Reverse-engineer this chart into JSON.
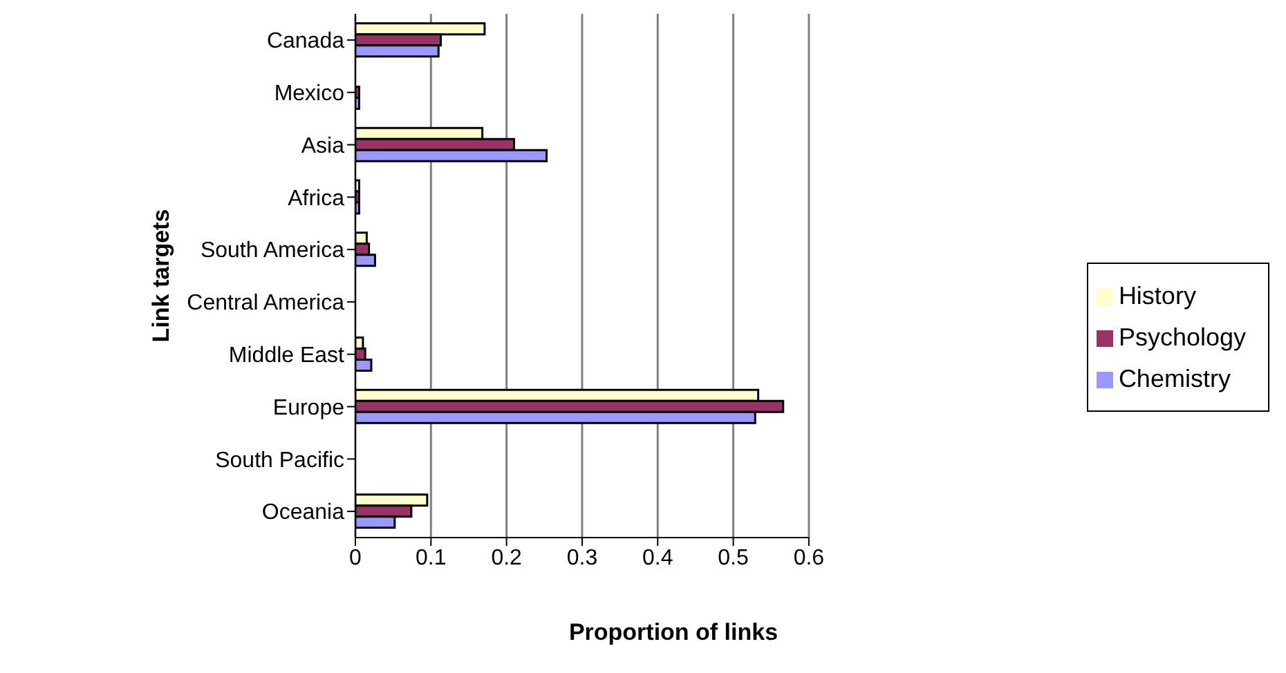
{
  "chart_data": {
    "type": "bar",
    "orientation": "horizontal",
    "xlabel": "Proportion of links",
    "ylabel": "Link targets",
    "categories": [
      "Canada",
      "Mexico",
      "Asia",
      "Africa",
      "South America",
      "Central America",
      "Middle East",
      "Europe",
      "South Pacific",
      "Oceania"
    ],
    "series": [
      {
        "name": "History",
        "color": "#ffffcc",
        "values": [
          0.171,
          0,
          0.168,
          0.005,
          0.015,
          0,
          0.01,
          0.533,
          0,
          0.095
        ]
      },
      {
        "name": "Psychology",
        "color": "#993366",
        "values": [
          0.113,
          0.005,
          0.21,
          0.005,
          0.018,
          0,
          0.013,
          0.566,
          0,
          0.074
        ]
      },
      {
        "name": "Chemistry",
        "color": "#9999ff",
        "values": [
          0.11,
          0.005,
          0.253,
          0.005,
          0.026,
          0,
          0.021,
          0.529,
          0,
          0.052
        ]
      }
    ],
    "xlim": [
      0,
      0.6
    ],
    "xticks": [
      0,
      0.1,
      0.2,
      0.3,
      0.4,
      0.5,
      0.6
    ],
    "grid": "x",
    "legend": "right"
  }
}
